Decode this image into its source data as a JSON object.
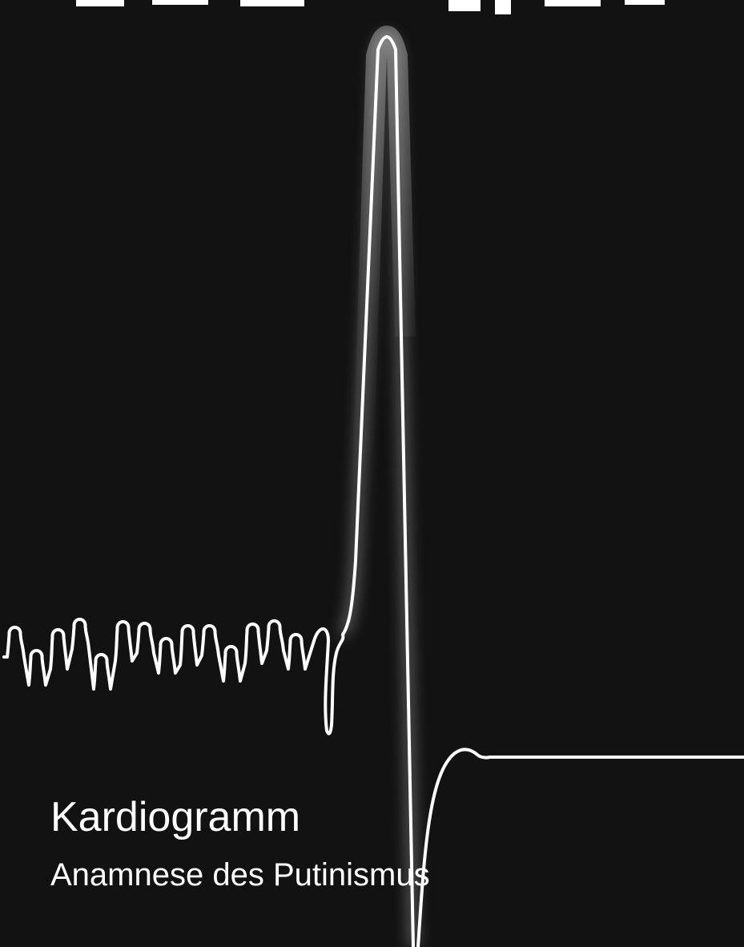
{
  "title": "Kardiogramm",
  "subtitle": "Anamnese des Putinismus"
}
